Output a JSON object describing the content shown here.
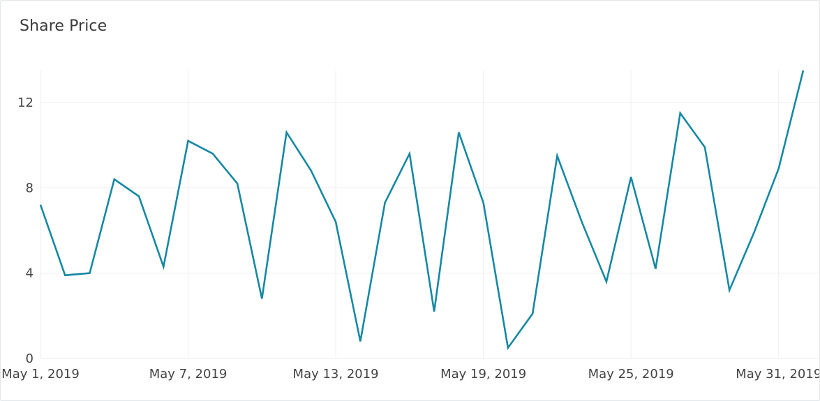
{
  "title": "Share Price",
  "colors": {
    "line": "#1688a4",
    "grid": "#eceef0",
    "text": "#444444"
  },
  "chart_data": {
    "type": "line",
    "title": "Share Price",
    "xlabel": "",
    "ylabel": "",
    "x": [
      "2019-05-01",
      "2019-05-02",
      "2019-05-03",
      "2019-05-04",
      "2019-05-05",
      "2019-05-06",
      "2019-05-07",
      "2019-05-08",
      "2019-05-09",
      "2019-05-10",
      "2019-05-11",
      "2019-05-12",
      "2019-05-13",
      "2019-05-14",
      "2019-05-15",
      "2019-05-16",
      "2019-05-17",
      "2019-05-18",
      "2019-05-19",
      "2019-05-20",
      "2019-05-21",
      "2019-05-22",
      "2019-05-23",
      "2019-05-24",
      "2019-05-25",
      "2019-05-26",
      "2019-05-27",
      "2019-05-28",
      "2019-05-29",
      "2019-05-30",
      "2019-05-31",
      "2019-06-01"
    ],
    "series": [
      {
        "values": [
          7.2,
          3.9,
          4.0,
          8.4,
          7.6,
          4.3,
          10.2,
          9.6,
          8.2,
          2.8,
          10.6,
          8.8,
          6.4,
          0.8,
          7.3,
          9.6,
          2.2,
          10.6,
          7.3,
          0.5,
          2.1,
          9.5,
          6.4,
          3.6,
          8.5,
          4.2,
          11.5,
          9.9,
          3.2,
          5.9,
          8.9,
          13.5
        ]
      }
    ],
    "ylim": [
      0,
      13.5
    ],
    "xlim": [
      "2019-05-01",
      "2019-06-01"
    ],
    "y_ticks": [
      {
        "value": 0,
        "label": "0"
      },
      {
        "value": 4,
        "label": "4"
      },
      {
        "value": 8,
        "label": "8"
      },
      {
        "value": 12,
        "label": "12"
      }
    ],
    "x_ticks": [
      {
        "date": "2019-05-01",
        "label": "May 1, 2019"
      },
      {
        "date": "2019-05-07",
        "label": "May 7, 2019"
      },
      {
        "date": "2019-05-13",
        "label": "May 13, 2019"
      },
      {
        "date": "2019-05-19",
        "label": "May 19, 2019"
      },
      {
        "date": "2019-05-25",
        "label": "May 25, 2019"
      },
      {
        "date": "2019-05-31",
        "label": "May 31, 2019"
      }
    ],
    "grid": true,
    "legend": "none"
  }
}
